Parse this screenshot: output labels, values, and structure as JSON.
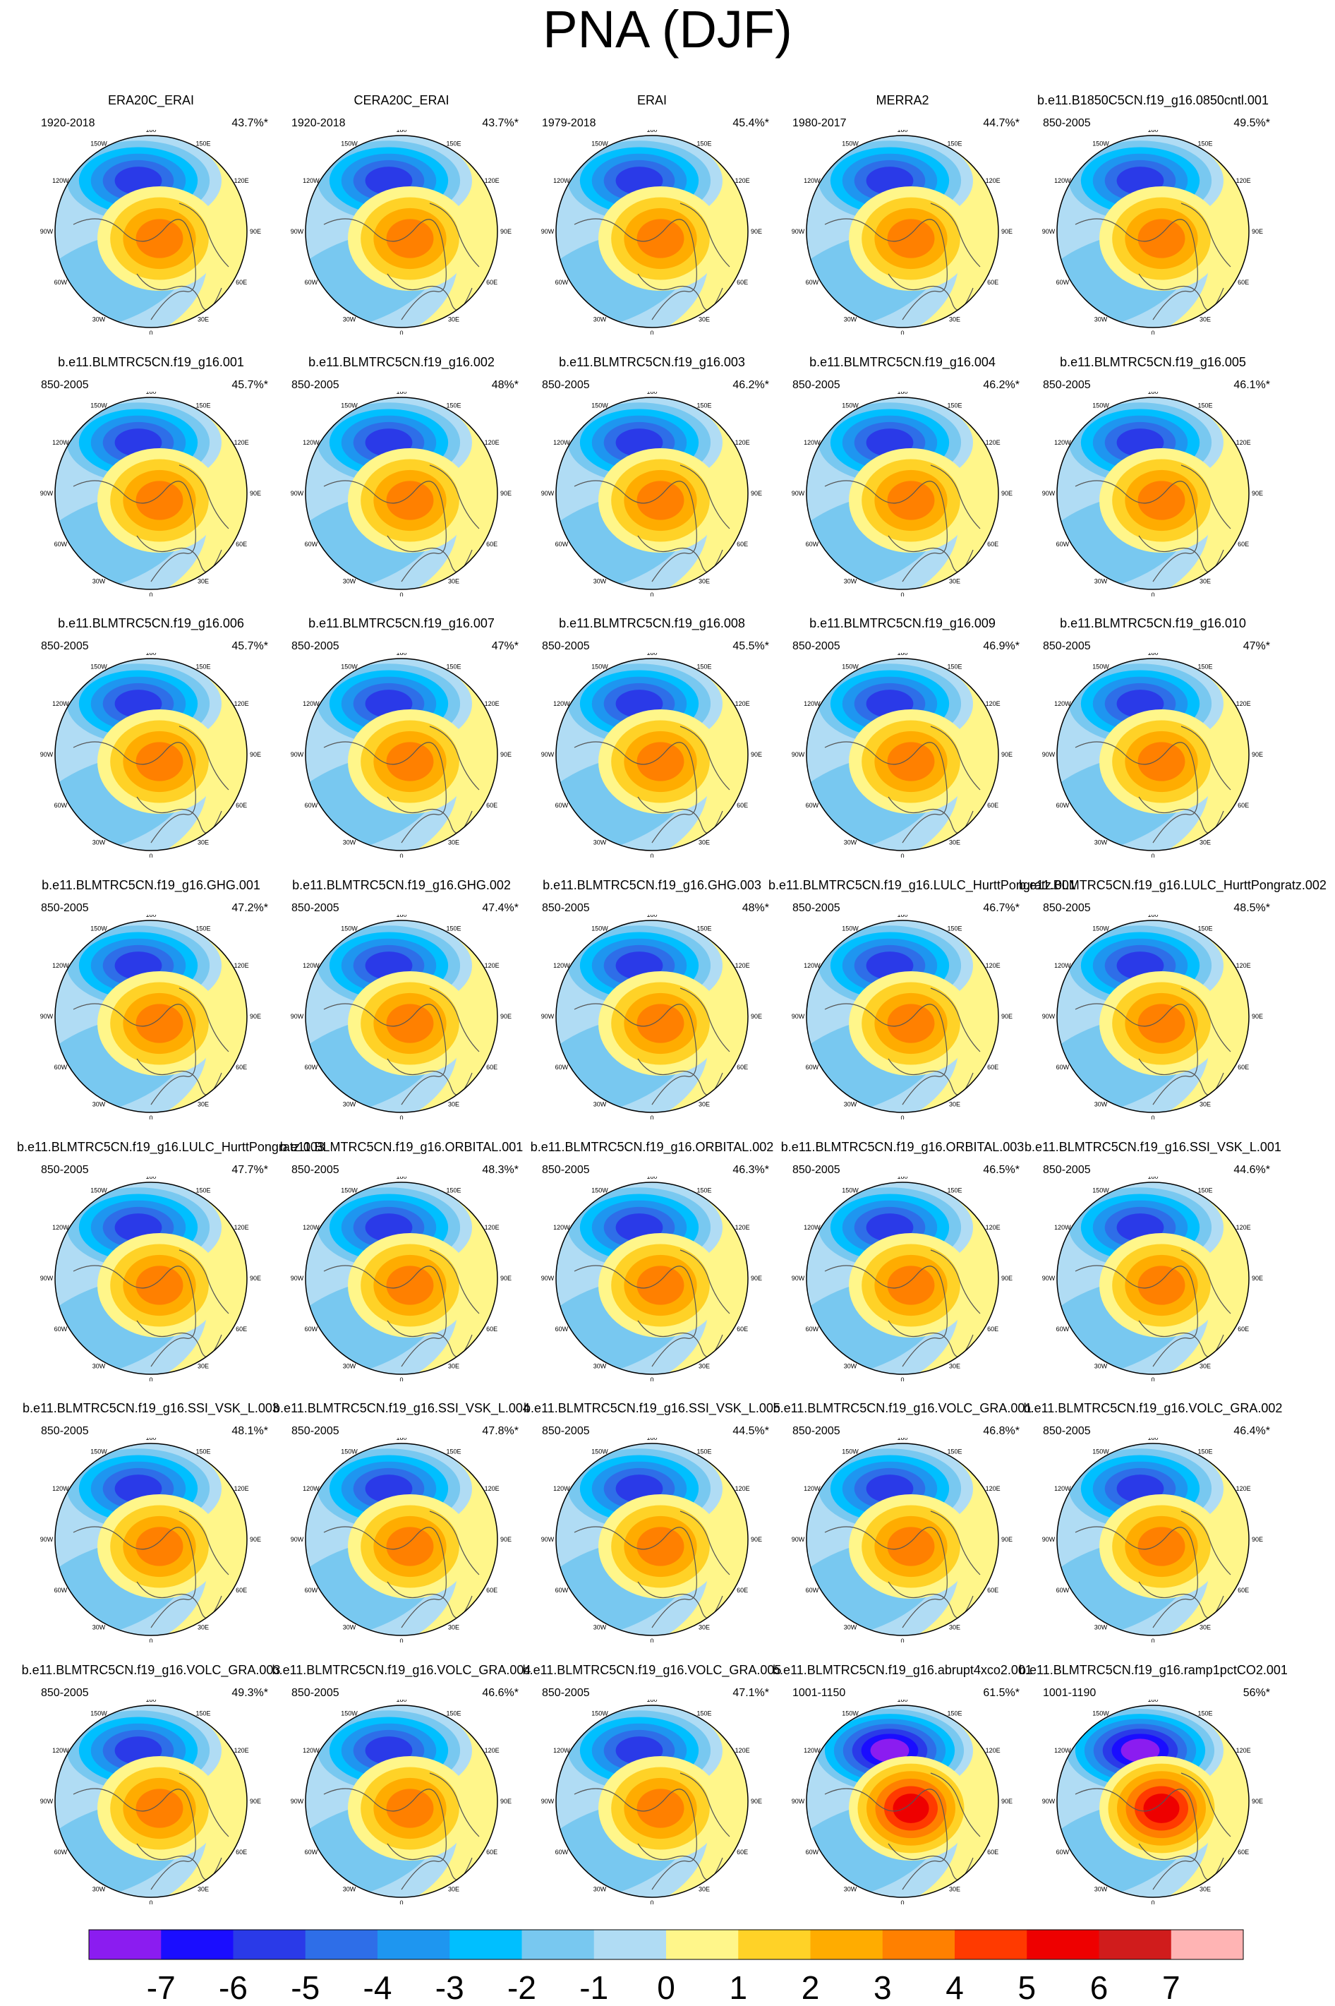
{
  "title": "PNA (DJF)",
  "chart_data": {
    "type": "polar-contour-panels",
    "variable": "PNA pattern (DJF)",
    "projection": "North polar stereographic",
    "lon_labels": [
      "180",
      "150W",
      "150E",
      "120W",
      "120E",
      "90W",
      "90E",
      "60W",
      "60E",
      "30W",
      "30E",
      "0"
    ],
    "colorbar": {
      "ticks": [
        "-7",
        "-6",
        "-5",
        "-4",
        "-3",
        "-2",
        "-1",
        "0",
        "1",
        "2",
        "3",
        "4",
        "5",
        "6",
        "7"
      ],
      "colors": [
        "#8b1cf0",
        "#1a0dff",
        "#2a3ae8",
        "#2e6ee8",
        "#1e96f0",
        "#00bfff",
        "#78c8f0",
        "#b0dcf4",
        "#fff68a",
        "#ffd227",
        "#ffac00",
        "#ff8000",
        "#ff3a00",
        "#ee0000",
        "#d01c1c",
        "#ffb4b4"
      ]
    },
    "panels": [
      {
        "title": "ERA20C_ERAI",
        "years": "1920-2018",
        "explained": "43.7%*"
      },
      {
        "title": "CERA20C_ERAI",
        "years": "1920-2018",
        "explained": "43.7%*"
      },
      {
        "title": "ERAI",
        "years": "1979-2018",
        "explained": "45.4%*"
      },
      {
        "title": "MERRA2",
        "years": "1980-2017",
        "explained": "44.7%*"
      },
      {
        "title": "b.e11.B1850C5CN.f19_g16.0850cntl.001",
        "years": "850-2005",
        "explained": "49.5%*"
      },
      {
        "title": "b.e11.BLMTRC5CN.f19_g16.001",
        "years": "850-2005",
        "explained": "45.7%*"
      },
      {
        "title": "b.e11.BLMTRC5CN.f19_g16.002",
        "years": "850-2005",
        "explained": "48%*"
      },
      {
        "title": "b.e11.BLMTRC5CN.f19_g16.003",
        "years": "850-2005",
        "explained": "46.2%*"
      },
      {
        "title": "b.e11.BLMTRC5CN.f19_g16.004",
        "years": "850-2005",
        "explained": "46.2%*"
      },
      {
        "title": "b.e11.BLMTRC5CN.f19_g16.005",
        "years": "850-2005",
        "explained": "46.1%*"
      },
      {
        "title": "b.e11.BLMTRC5CN.f19_g16.006",
        "years": "850-2005",
        "explained": "45.7%*"
      },
      {
        "title": "b.e11.BLMTRC5CN.f19_g16.007",
        "years": "850-2005",
        "explained": "47%*"
      },
      {
        "title": "b.e11.BLMTRC5CN.f19_g16.008",
        "years": "850-2005",
        "explained": "45.5%*"
      },
      {
        "title": "b.e11.BLMTRC5CN.f19_g16.009",
        "years": "850-2005",
        "explained": "46.9%*"
      },
      {
        "title": "b.e11.BLMTRC5CN.f19_g16.010",
        "years": "850-2005",
        "explained": "47%*"
      },
      {
        "title": "b.e11.BLMTRC5CN.f19_g16.GHG.001",
        "years": "850-2005",
        "explained": "47.2%*"
      },
      {
        "title": "b.e11.BLMTRC5CN.f19_g16.GHG.002",
        "years": "850-2005",
        "explained": "47.4%*"
      },
      {
        "title": "b.e11.BLMTRC5CN.f19_g16.GHG.003",
        "years": "850-2005",
        "explained": "48%*"
      },
      {
        "title": "b.e11.BLMTRC5CN.f19_g16.LULC_HurttPongratz.001",
        "years": "850-2005",
        "explained": "46.7%*"
      },
      {
        "title": "b.e11.BLMTRC5CN.f19_g16.LULC_HurttPongratz.002",
        "years": "850-2005",
        "explained": "48.5%*"
      },
      {
        "title": "b.e11.BLMTRC5CN.f19_g16.LULC_HurttPongratz.003",
        "years": "850-2005",
        "explained": "47.7%*"
      },
      {
        "title": "b.e11.BLMTRC5CN.f19_g16.ORBITAL.001",
        "years": "850-2005",
        "explained": "48.3%*"
      },
      {
        "title": "b.e11.BLMTRC5CN.f19_g16.ORBITAL.002",
        "years": "850-2005",
        "explained": "46.3%*"
      },
      {
        "title": "b.e11.BLMTRC5CN.f19_g16.ORBITAL.003",
        "years": "850-2005",
        "explained": "46.5%*"
      },
      {
        "title": "b.e11.BLMTRC5CN.f19_g16.SSI_VSK_L.001",
        "years": "850-2005",
        "explained": "44.6%*"
      },
      {
        "title": "b.e11.BLMTRC5CN.f19_g16.SSI_VSK_L.003",
        "years": "850-2005",
        "explained": "48.1%*"
      },
      {
        "title": "b.e11.BLMTRC5CN.f19_g16.SSI_VSK_L.004",
        "years": "850-2005",
        "explained": "47.8%*"
      },
      {
        "title": "b.e11.BLMTRC5CN.f19_g16.SSI_VSK_L.005",
        "years": "850-2005",
        "explained": "44.5%*"
      },
      {
        "title": "b.e11.BLMTRC5CN.f19_g16.VOLC_GRA.001",
        "years": "850-2005",
        "explained": "46.8%*"
      },
      {
        "title": "b.e11.BLMTRC5CN.f19_g16.VOLC_GRA.002",
        "years": "850-2005",
        "explained": "46.4%*"
      },
      {
        "title": "b.e11.BLMTRC5CN.f19_g16.VOLC_GRA.003",
        "years": "850-2005",
        "explained": "49.3%*"
      },
      {
        "title": "b.e11.BLMTRC5CN.f19_g16.VOLC_GRA.004",
        "years": "850-2005",
        "explained": "46.6%*"
      },
      {
        "title": "b.e11.BLMTRC5CN.f19_g16.VOLC_GRA.005",
        "years": "850-2005",
        "explained": "47.1%*"
      },
      {
        "title": "b.e11.BLMTRC5CN.f19_g16.abrupt4xco2.001",
        "years": "1001-1150",
        "explained": "61.5%*"
      },
      {
        "title": "b.e11.BLMTRC5CN.f19_g16.ramp1pctCO2.001",
        "years": "1001-1190",
        "explained": "56%*"
      }
    ]
  }
}
